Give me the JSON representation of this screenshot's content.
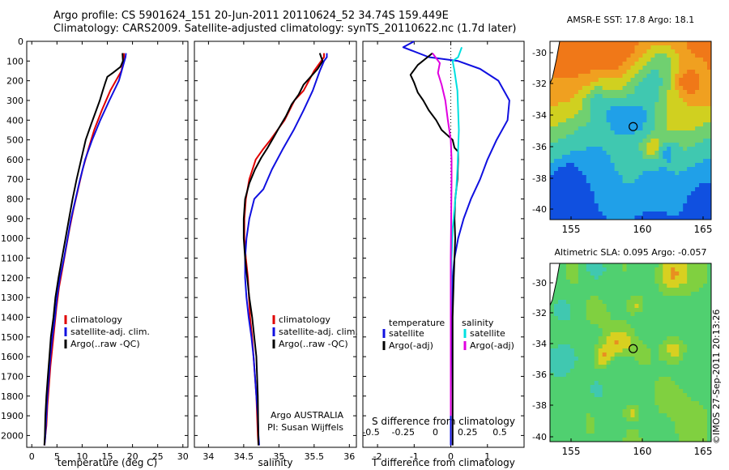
{
  "header": {
    "line1": "Argo profile: CS 5901624_151 20-Jun-2011 20110624_52 34.74S 159.449E",
    "line2": "Climatology: CARS2009. Satellite-adjusted climatology: synTS_20110622.nc (1.7d later)"
  },
  "stamp": "©IMOS 27-Sep-2011 20:13:26",
  "colors": {
    "climatology": "#e00000",
    "satellite": "#1010e0",
    "argo": "#000000",
    "satellite_s": "#00e0e0",
    "argo_s": "#e000e0"
  },
  "chart_data": [
    {
      "type": "line",
      "xlabel": "temperature (deg C)",
      "ylabel": "",
      "xlim": [
        -1,
        31
      ],
      "ylim": [
        2060,
        0
      ],
      "xticks": [
        0,
        5,
        10,
        15,
        20,
        25,
        30
      ],
      "yticks": [
        0,
        100,
        200,
        300,
        400,
        500,
        600,
        700,
        800,
        900,
        1000,
        1100,
        1200,
        1300,
        1400,
        1500,
        1600,
        1700,
        1800,
        1900,
        2000
      ],
      "legend": [
        "climatology",
        "satellite-adj. clim.",
        "Argo(..raw -QC)"
      ],
      "series": [
        {
          "name": "climatology",
          "color": "#e00000",
          "x": [
            18.3,
            18.3,
            18.2,
            17.8,
            15.6,
            13.9,
            12.4,
            11.2,
            10.1,
            9.2,
            8.3,
            7.5,
            6.8,
            6.1,
            5.4,
            4.9,
            4.5,
            4.1,
            3.7,
            3.4,
            3.1,
            2.9,
            2.7,
            2.6,
            2.5
          ],
          "y": [
            60,
            80,
            100,
            150,
            250,
            350,
            450,
            550,
            650,
            750,
            850,
            950,
            1050,
            1150,
            1250,
            1350,
            1450,
            1550,
            1650,
            1750,
            1850,
            1950,
            2000,
            2030,
            2050
          ]
        },
        {
          "name": "satellite-adj. clim.",
          "color": "#1010e0",
          "x": [
            18.7,
            18.6,
            18.4,
            17.3,
            15.4,
            13.6,
            12.0,
            10.6,
            9.6,
            8.7,
            7.8,
            7.1,
            6.4,
            5.6,
            5.0,
            4.6,
            4.1,
            3.7,
            3.4,
            3.1,
            2.9,
            2.7,
            2.6,
            2.5
          ],
          "y": [
            60,
            80,
            100,
            200,
            300,
            400,
            500,
            600,
            700,
            800,
            900,
            1000,
            1100,
            1200,
            1300,
            1400,
            1500,
            1600,
            1700,
            1800,
            1900,
            2000,
            2030,
            2050
          ]
        },
        {
          "name": "Argo(..raw -QC)",
          "color": "#000000",
          "x": [
            18.0,
            18.1,
            17.6,
            16.1,
            15.0,
            14.6,
            14.1,
            13.5,
            12.8,
            11.8,
            10.7,
            9.8,
            8.9,
            8.1,
            7.4,
            6.7,
            6.0,
            5.3,
            4.7,
            4.3,
            3.8,
            3.5,
            3.2,
            2.9,
            2.7,
            2.6,
            2.5
          ],
          "y": [
            60,
            100,
            130,
            160,
            180,
            210,
            250,
            300,
            350,
            420,
            500,
            600,
            700,
            800,
            900,
            1000,
            1100,
            1200,
            1300,
            1400,
            1500,
            1600,
            1700,
            1800,
            1900,
            2000,
            2050
          ]
        }
      ]
    },
    {
      "type": "line",
      "xlabel": "salinity",
      "ylabel": "",
      "xlim": [
        33.8,
        36.1
      ],
      "ylim": [
        2060,
        0
      ],
      "xticks": [
        34,
        34.5,
        35,
        35.5,
        36
      ],
      "legend": [
        "climatology",
        "satellite-adj. clim.",
        "Argo(..raw -QC)"
      ],
      "annotation": [
        "Argo AUSTRALIA",
        "PI: Susan Wijffels"
      ],
      "series": [
        {
          "name": "climatology",
          "color": "#e00000",
          "x": [
            35.64,
            35.64,
            35.6,
            35.5,
            35.35,
            35.22,
            35.08,
            34.98,
            34.88,
            34.77,
            34.67,
            34.58,
            34.53,
            34.51,
            34.51,
            34.53,
            34.56,
            34.59,
            34.62,
            34.64,
            34.66,
            34.68,
            34.69,
            34.7,
            34.71
          ],
          "y": [
            60,
            80,
            100,
            150,
            250,
            300,
            400,
            450,
            500,
            550,
            600,
            700,
            800,
            900,
            1000,
            1100,
            1200,
            1400,
            1500,
            1600,
            1700,
            1800,
            1900,
            2000,
            2050
          ]
        },
        {
          "name": "satellite-adj. clim.",
          "color": "#1010e0",
          "x": [
            35.68,
            35.68,
            35.64,
            35.58,
            35.48,
            35.35,
            35.21,
            35.05,
            34.9,
            34.78,
            34.65,
            34.58,
            34.54,
            34.52,
            34.52,
            34.54,
            34.57,
            34.61,
            34.64,
            34.66,
            34.68,
            34.7,
            34.71,
            34.72
          ],
          "y": [
            60,
            80,
            100,
            150,
            250,
            350,
            450,
            550,
            650,
            750,
            800,
            900,
            1000,
            1100,
            1200,
            1300,
            1400,
            1500,
            1600,
            1700,
            1800,
            1900,
            2000,
            2050
          ]
        },
        {
          "name": "Argo(..raw -QC)",
          "color": "#000000",
          "x": [
            35.58,
            35.6,
            35.62,
            35.55,
            35.45,
            35.35,
            35.28,
            35.18,
            35.1,
            35.0,
            34.92,
            34.84,
            34.75,
            34.66,
            34.58,
            34.52,
            34.5,
            34.5,
            34.52,
            34.55,
            34.58,
            34.62,
            34.65,
            34.68,
            34.7,
            34.71
          ],
          "y": [
            60,
            80,
            100,
            140,
            180,
            220,
            270,
            320,
            380,
            440,
            490,
            540,
            590,
            650,
            720,
            800,
            900,
            1000,
            1100,
            1200,
            1300,
            1400,
            1500,
            1600,
            1800,
            2050
          ]
        }
      ]
    },
    {
      "type": "line",
      "xlabel": "T difference from climatology",
      "title": "S difference from climatology",
      "xlim": [
        -2.4,
        2.0
      ],
      "ylim": [
        2060,
        0
      ],
      "xticks": [
        -2,
        -1,
        0,
        1
      ],
      "xticks_top": [
        "-0.5",
        "-0.25",
        "0",
        "0.25",
        "0.5"
      ],
      "legend_left_title": "temperature",
      "legend_right_title": "salinity",
      "legend": [
        "satellite",
        "Argo(-adj)",
        "satellite",
        "Argo(-adj)"
      ],
      "series": [
        {
          "name": "satellite",
          "color": "#1010e0",
          "x": [
            -1.0,
            -1.3,
            -0.6,
            0.2,
            0.8,
            1.3,
            1.6,
            1.55,
            1.25,
            1.0,
            0.8,
            0.55,
            0.35,
            0.2,
            0.1,
            0.05,
            0.02,
            0.0,
            0.0
          ],
          "y": [
            0,
            30,
            80,
            100,
            140,
            200,
            300,
            400,
            500,
            600,
            700,
            800,
            900,
            1000,
            1100,
            1200,
            1400,
            1800,
            2050
          ]
        },
        {
          "name": "Argo(-adj)",
          "color": "#000000",
          "x": [
            -0.5,
            -0.9,
            -1.1,
            -1.0,
            -0.9,
            -0.75,
            -0.6,
            -0.4,
            -0.25,
            0.05,
            0.1,
            0.2,
            0.2,
            0.18,
            0.12,
            0.1,
            0.12,
            0.08,
            0.05,
            0.05,
            0.05,
            0.05
          ],
          "y": [
            60,
            120,
            170,
            210,
            260,
            300,
            350,
            400,
            450,
            500,
            540,
            560,
            600,
            700,
            800,
            900,
            1000,
            1200,
            1400,
            1600,
            1800,
            2050
          ]
        },
        {
          "name": "satellite",
          "color": "#00e0e0",
          "x": [
            0.3,
            0.2,
            0.05,
            0.1,
            0.18,
            0.2,
            0.22,
            0.2,
            0.18,
            0.15,
            0.1,
            0.05,
            0.02,
            0.0,
            0.0
          ],
          "y": [
            30,
            80,
            100,
            150,
            250,
            350,
            450,
            550,
            650,
            750,
            850,
            950,
            1100,
            1400,
            1900
          ]
        },
        {
          "name": "Argo(-adj)",
          "color": "#e000e0",
          "x": [
            -0.5,
            -0.3,
            -0.35,
            -0.25,
            -0.15,
            -0.08,
            0.0,
            0.02,
            0.02,
            0.01,
            0.0,
            0.0
          ],
          "y": [
            60,
            110,
            160,
            220,
            300,
            400,
            500,
            600,
            700,
            900,
            1100,
            1900
          ]
        }
      ]
    }
  ],
  "maps": [
    {
      "title": "AMSR-E SST: 17.8 Argo: 18.1",
      "xticks": [
        "155",
        "160",
        "165"
      ],
      "yticks": [
        "-30",
        "-32",
        "-34",
        "-36",
        "-38",
        "-40"
      ],
      "xlim": [
        153,
        165.5
      ],
      "ylim": [
        -41,
        -29
      ],
      "marker": [
        159.45,
        -34.74
      ]
    },
    {
      "title": "Altimetric SLA: 0.095 Argo: -0.057",
      "xticks": [
        "155",
        "160",
        "165"
      ],
      "yticks": [
        "-30",
        "-32",
        "-34",
        "-36",
        "-38",
        "-40"
      ],
      "xlim": [
        153,
        165.5
      ],
      "ylim": [
        -41,
        -29
      ],
      "marker": [
        159.45,
        -34.74
      ]
    }
  ]
}
